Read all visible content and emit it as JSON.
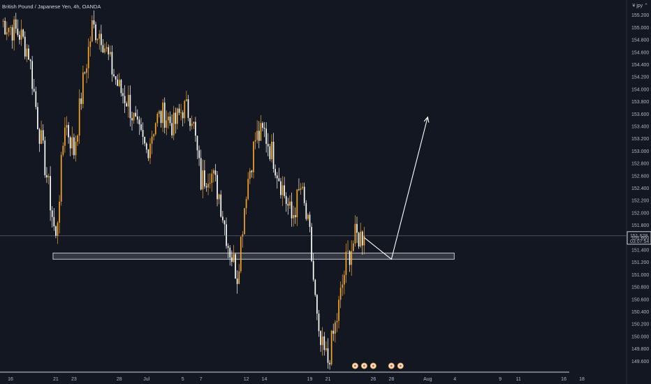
{
  "header": {
    "title": "British Pound / Japanese Yen, 4h, OANDA",
    "top_right": "¥ jpy ⌃"
  },
  "price_tag": {
    "price": "151.628",
    "countdown": "03:07:54",
    "color": "#ffffff"
  },
  "colors": {
    "background": "#131722",
    "bull": "#f5a623",
    "bear": "#ffffff",
    "zone_fill": "#d1d4dc",
    "axis_text": "#b2b5be"
  },
  "event_icons": [
    {
      "date": "Jul 24",
      "name": "economic-event-icon"
    },
    {
      "date": "Jul 25",
      "name": "economic-event-icon"
    },
    {
      "date": "Jul 26",
      "name": "economic-event-icon"
    },
    {
      "date": "Jul 28",
      "name": "economic-event-icon"
    },
    {
      "date": "Jul 29",
      "name": "economic-event-icon"
    }
  ],
  "chart_data": {
    "type": "candlestick",
    "title": "British Pound / Japanese Yen, 4h, OANDA",
    "xlabel": "",
    "ylabel": "",
    "ylim": [
      149.4,
      155.4
    ],
    "y_ticks": [
      "155.200",
      "155.000",
      "154.800",
      "154.600",
      "154.400",
      "154.200",
      "154.000",
      "153.800",
      "153.600",
      "153.400",
      "153.200",
      "153.000",
      "152.800",
      "152.600",
      "152.400",
      "152.200",
      "152.000",
      "151.800",
      "151.600",
      "151.400",
      "151.200",
      "151.000",
      "150.800",
      "150.600",
      "150.400",
      "150.200",
      "150.000",
      "149.800",
      "149.600"
    ],
    "x_ticks": [
      {
        "label": "16",
        "date": "Jun 16"
      },
      {
        "label": "21",
        "date": "Jun 21"
      },
      {
        "label": "23",
        "date": "Jun 23"
      },
      {
        "label": "28",
        "date": "Jun 28"
      },
      {
        "label": "Jul",
        "date": "Jul 1"
      },
      {
        "label": "5",
        "date": "Jul 5"
      },
      {
        "label": "7",
        "date": "Jul 7"
      },
      {
        "label": "12",
        "date": "Jul 12"
      },
      {
        "label": "14",
        "date": "Jul 14"
      },
      {
        "label": "19",
        "date": "Jul 19"
      },
      {
        "label": "21",
        "date": "Jul 21"
      },
      {
        "label": "26",
        "date": "Jul 26"
      },
      {
        "label": "28",
        "date": "Jul 28"
      },
      {
        "label": "Aug",
        "date": "Aug 1"
      },
      {
        "label": "4",
        "date": "Aug 4"
      },
      {
        "label": "9",
        "date": "Aug 9"
      },
      {
        "label": "11",
        "date": "Aug 11"
      },
      {
        "label": "16",
        "date": "Aug 16"
      },
      {
        "label": "18",
        "date": "Aug 18"
      }
    ],
    "x_range": [
      "Jun 15",
      "Aug 21"
    ],
    "last_price": 151.628,
    "support_zone": {
      "low": 151.25,
      "high": 151.35,
      "from": "Jun 21",
      "to": "Aug 1"
    },
    "projection": [
      {
        "date": "Jul 25",
        "price": 151.6
      },
      {
        "date": "Jul 28",
        "price": 151.25
      },
      {
        "date": "Aug 1",
        "price": 153.55
      }
    ],
    "price_path": [
      {
        "date": "Jun 15",
        "price": 155.1
      },
      {
        "date": "Jun 16",
        "price": 155.0
      },
      {
        "date": "Jun 17",
        "price": 154.9
      },
      {
        "date": "Jun 18",
        "price": 154.6
      },
      {
        "date": "Jun 19",
        "price": 153.5
      },
      {
        "date": "Jun 20",
        "price": 152.6
      },
      {
        "date": "Jun 21",
        "price": 151.55
      },
      {
        "date": "Jun 22",
        "price": 153.5
      },
      {
        "date": "Jun 23",
        "price": 153.0
      },
      {
        "date": "Jun 24",
        "price": 154.1
      },
      {
        "date": "Jun 25",
        "price": 155.0
      },
      {
        "date": "Jun 26",
        "price": 154.9
      },
      {
        "date": "Jun 27",
        "price": 154.4
      },
      {
        "date": "Jun 28",
        "price": 154.0
      },
      {
        "date": "Jun 29",
        "price": 153.8
      },
      {
        "date": "Jun 30",
        "price": 153.3
      },
      {
        "date": "Jul 1",
        "price": 153.0
      },
      {
        "date": "Jul 2",
        "price": 153.5
      },
      {
        "date": "Jul 3",
        "price": 153.6
      },
      {
        "date": "Jul 4",
        "price": 153.4
      },
      {
        "date": "Jul 5",
        "price": 153.7
      },
      {
        "date": "Jul 6",
        "price": 153.6
      },
      {
        "date": "Jul 7",
        "price": 152.5
      },
      {
        "date": "Jul 8",
        "price": 152.7
      },
      {
        "date": "Jul 9",
        "price": 152.3
      },
      {
        "date": "Jul 10",
        "price": 151.5
      },
      {
        "date": "Jul 11",
        "price": 151.0
      },
      {
        "date": "Jul 12",
        "price": 152.4
      },
      {
        "date": "Jul 13",
        "price": 153.2
      },
      {
        "date": "Jul 14",
        "price": 153.3
      },
      {
        "date": "Jul 15",
        "price": 152.9
      },
      {
        "date": "Jul 16",
        "price": 152.4
      },
      {
        "date": "Jul 17",
        "price": 151.9
      },
      {
        "date": "Jul 18",
        "price": 152.4
      },
      {
        "date": "Jul 19",
        "price": 151.6
      },
      {
        "date": "Jul 20",
        "price": 149.9
      },
      {
        "date": "Jul 21",
        "price": 149.6
      },
      {
        "date": "Jul 22",
        "price": 150.3
      },
      {
        "date": "Jul 23",
        "price": 151.2
      },
      {
        "date": "Jul 24",
        "price": 151.6
      },
      {
        "date": "Jul 25",
        "price": 151.628
      }
    ]
  }
}
